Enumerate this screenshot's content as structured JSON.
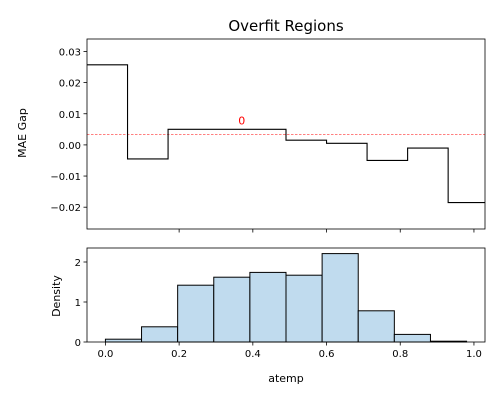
{
  "chart_data": [
    {
      "type": "line",
      "step": "post",
      "title": "Overfit Regions",
      "xlabel": "",
      "ylabel": "MAE Gap",
      "xlim": [
        -0.05,
        1.03
      ],
      "ylim": [
        -0.027,
        0.034
      ],
      "yticks": [
        0.03,
        0.02,
        0.01,
        0.0,
        -0.01,
        -0.02
      ],
      "ytick_labels": [
        "0.03",
        "0.02",
        "0.01",
        "0.00",
        "−0.01",
        "−0.02"
      ],
      "xticks": [
        0.2,
        0.4,
        0.6,
        0.8,
        1.0
      ],
      "steps": [
        {
          "x0": -0.05,
          "x1": 0.06,
          "y": 0.0257
        },
        {
          "x0": 0.06,
          "x1": 0.17,
          "y": -0.0045
        },
        {
          "x0": 0.17,
          "x1": 0.49,
          "y": 0.005
        },
        {
          "x0": 0.49,
          "x1": 0.6,
          "y": 0.0015
        },
        {
          "x0": 0.6,
          "x1": 0.71,
          "y": 0.0005
        },
        {
          "x0": 0.71,
          "x1": 0.82,
          "y": -0.005
        },
        {
          "x0": 0.82,
          "x1": 0.93,
          "y": -0.001
        },
        {
          "x0": 0.93,
          "x1": 1.03,
          "y": -0.0185
        }
      ],
      "reference_line": {
        "y": 0.0033,
        "color": "#ff0000",
        "style": "dashed"
      },
      "annotations": [
        {
          "text": "0",
          "x": 0.37,
          "y": 0.0065,
          "color": "#ff0000"
        }
      ],
      "colors": {
        "line": "#000000"
      }
    },
    {
      "type": "bar",
      "histogram": true,
      "xlabel": "atemp",
      "ylabel": "Density",
      "xlim": [
        -0.05,
        1.03
      ],
      "ylim": [
        0,
        2.35
      ],
      "yticks": [
        0,
        1,
        2
      ],
      "ytick_labels": [
        "0",
        "1",
        "2"
      ],
      "xticks": [
        0.0,
        0.2,
        0.4,
        0.6,
        0.8,
        1.0
      ],
      "xtick_labels": [
        "0.0",
        "0.2",
        "0.4",
        "0.6",
        "0.8",
        "1.0"
      ],
      "bins": [
        {
          "x0": 0.0,
          "x1": 0.098,
          "value": 0.07
        },
        {
          "x0": 0.098,
          "x1": 0.196,
          "value": 0.38
        },
        {
          "x0": 0.196,
          "x1": 0.294,
          "value": 1.42
        },
        {
          "x0": 0.294,
          "x1": 0.392,
          "value": 1.62
        },
        {
          "x0": 0.392,
          "x1": 0.49,
          "value": 1.74
        },
        {
          "x0": 0.49,
          "x1": 0.588,
          "value": 1.67
        },
        {
          "x0": 0.588,
          "x1": 0.686,
          "value": 2.21
        },
        {
          "x0": 0.686,
          "x1": 0.784,
          "value": 0.78
        },
        {
          "x0": 0.784,
          "x1": 0.882,
          "value": 0.19
        },
        {
          "x0": 0.882,
          "x1": 0.98,
          "value": 0.02
        }
      ],
      "colors": {
        "fill": "#c0dbee",
        "edge": "#000000"
      }
    }
  ]
}
